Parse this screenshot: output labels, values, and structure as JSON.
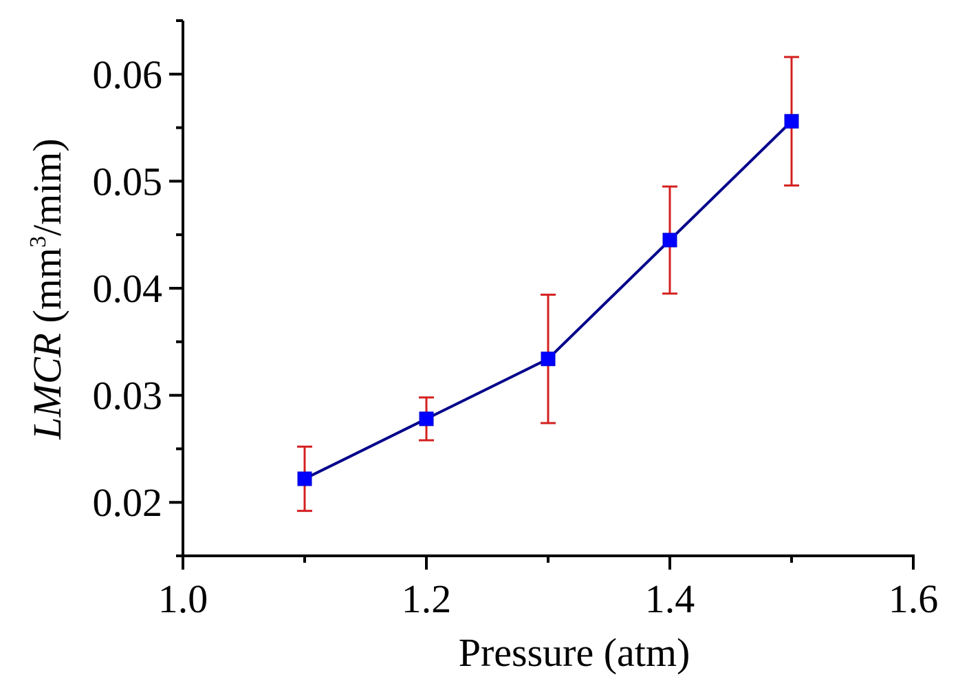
{
  "chart_data": {
    "type": "line",
    "title": "",
    "xlabel": "Pressure (atm)",
    "ylabel": {
      "italic": "LMCR",
      "unit_prefix": " (mm",
      "unit_sup": "3",
      "unit_suffix": "/mim)"
    },
    "xlim": [
      1.0,
      1.6
    ],
    "ylim": [
      0.015,
      0.065
    ],
    "x_ticks": [
      1.0,
      1.2,
      1.4,
      1.6
    ],
    "x_tick_labels": [
      "1.0",
      "1.2",
      "1.4",
      "1.6"
    ],
    "x_minor_ticks": [
      1.1,
      1.3,
      1.5
    ],
    "y_ticks": [
      0.02,
      0.03,
      0.04,
      0.05,
      0.06
    ],
    "y_tick_labels": [
      "0.02",
      "0.03",
      "0.04",
      "0.05",
      "0.06"
    ],
    "y_minor_ticks": [
      0.015,
      0.025,
      0.035,
      0.045,
      0.055,
      0.065
    ],
    "series": [
      {
        "name": "LMCR",
        "x": [
          1.1,
          1.2,
          1.3,
          1.4,
          1.5
        ],
        "y": [
          0.0222,
          0.0278,
          0.0334,
          0.0445,
          0.0556
        ],
        "error_low": [
          0.0192,
          0.0258,
          0.0274,
          0.0395,
          0.0496
        ],
        "error_high": [
          0.0252,
          0.0298,
          0.0394,
          0.0495,
          0.0616
        ],
        "line_color": "#00008b",
        "marker_color": "#0000ff",
        "error_color": "#d42020"
      }
    ]
  }
}
